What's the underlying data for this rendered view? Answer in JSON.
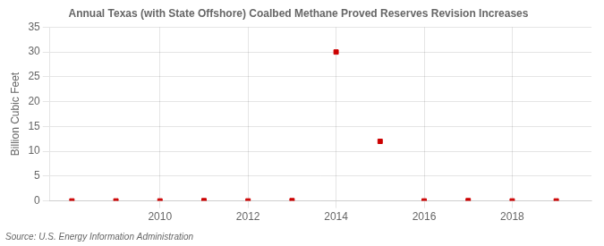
{
  "chart_data": {
    "type": "scatter",
    "title": "Annual Texas (with State Offshore) Coalbed Methane Proved Reserves Revision Increases",
    "ylabel": "Billion Cubic Feet",
    "annotation": "Source: U.S. Energy Information Administration",
    "x": [
      2008,
      2009,
      2010,
      2011,
      2012,
      2013,
      2014,
      2015,
      2016,
      2017,
      2018,
      2019
    ],
    "values": [
      0.0,
      0.0,
      0.0,
      0.05,
      0.0,
      0.05,
      30.0,
      12.0,
      0.0,
      0.05,
      0.0,
      0.0
    ],
    "color": "#cc0000",
    "marker": "square",
    "xlim": [
      2007.5,
      2019.8
    ],
    "ylim": [
      0,
      35
    ],
    "xticks": [
      2010,
      2012,
      2014,
      2016,
      2018
    ],
    "yticks": [
      0,
      5,
      10,
      15,
      20,
      25,
      30,
      35
    ],
    "grid": true
  }
}
